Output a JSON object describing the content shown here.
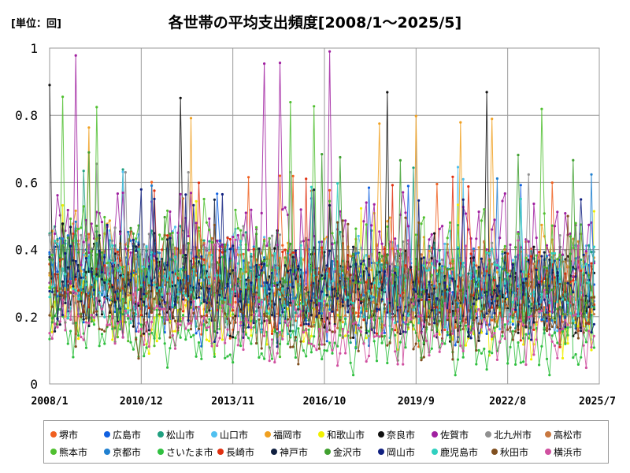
{
  "unit_label": "[単位：回]",
  "chart_data": {
    "type": "line",
    "title": "各世帯の平均支出頻度[2008/1～2025/5]",
    "xlabel": "",
    "ylabel": "",
    "ylim": [
      0,
      1
    ],
    "yticks": [
      "0",
      "0.2",
      "0.4",
      "0.6",
      "0.8",
      "1"
    ],
    "xticks": [
      "2008/1",
      "2010/12",
      "2013/11",
      "2016/10",
      "2019/9",
      "2022/8",
      "2025/7"
    ],
    "x_start": "2008/1",
    "x_end": "2025/7",
    "grid": true,
    "legend_position": "bottom",
    "series": [
      {
        "name": "堺市",
        "color": "#f06020",
        "base": 0.28,
        "amp": 0.09,
        "noise": 0.09,
        "peak": 0.62,
        "seed": 11
      },
      {
        "name": "広島市",
        "color": "#1060e0",
        "base": 0.26,
        "amp": 0.08,
        "noise": 0.09,
        "peak": 0.6,
        "seed": 23
      },
      {
        "name": "松山市",
        "color": "#20a080",
        "base": 0.3,
        "amp": 0.09,
        "noise": 0.1,
        "peak": 0.66,
        "seed": 37
      },
      {
        "name": "山口市",
        "color": "#50c0f0",
        "base": 0.3,
        "amp": 0.08,
        "noise": 0.1,
        "peak": 0.65,
        "seed": 41
      },
      {
        "name": "福岡市",
        "color": "#f0a020",
        "base": 0.32,
        "amp": 0.1,
        "noise": 0.1,
        "peak": 0.8,
        "seed": 53
      },
      {
        "name": "和歌山市",
        "color": "#f0f000",
        "base": 0.2,
        "amp": 0.07,
        "noise": 0.08,
        "peak": 0.55,
        "seed": 67
      },
      {
        "name": "奈良市",
        "color": "#101010",
        "base": 0.27,
        "amp": 0.09,
        "noise": 0.1,
        "peak": 0.89,
        "seed": 71
      },
      {
        "name": "佐賀市",
        "color": "#a020a0",
        "base": 0.38,
        "amp": 0.1,
        "noise": 0.13,
        "peak": 1.0,
        "seed": 83
      },
      {
        "name": "北九州市",
        "color": "#909090",
        "base": 0.3,
        "amp": 0.08,
        "noise": 0.09,
        "peak": 0.66,
        "seed": 97
      },
      {
        "name": "高松市",
        "color": "#c87840",
        "base": 0.29,
        "amp": 0.08,
        "noise": 0.09,
        "peak": 0.6,
        "seed": 101
      },
      {
        "name": "熊本市",
        "color": "#50c030",
        "base": 0.3,
        "amp": 0.12,
        "noise": 0.14,
        "peak": 0.86,
        "seed": 113
      },
      {
        "name": "京都市",
        "color": "#2080d0",
        "base": 0.28,
        "amp": 0.08,
        "noise": 0.1,
        "peak": 0.64,
        "seed": 127
      },
      {
        "name": "さいたま市",
        "color": "#30c040",
        "base": 0.12,
        "amp": 0.05,
        "noise": 0.06,
        "peak": 0.4,
        "seed": 131
      },
      {
        "name": "長崎市",
        "color": "#e03010",
        "base": 0.28,
        "amp": 0.08,
        "noise": 0.1,
        "peak": 0.62,
        "seed": 139
      },
      {
        "name": "神戸市",
        "color": "#102040",
        "base": 0.26,
        "amp": 0.08,
        "noise": 0.09,
        "peak": 0.58,
        "seed": 151
      },
      {
        "name": "金沢市",
        "color": "#40a030",
        "base": 0.28,
        "amp": 0.09,
        "noise": 0.1,
        "peak": 0.7,
        "seed": 163
      },
      {
        "name": "岡山市",
        "color": "#102080",
        "base": 0.26,
        "amp": 0.08,
        "noise": 0.09,
        "peak": 0.58,
        "seed": 173
      },
      {
        "name": "鹿児島市",
        "color": "#30d0c0",
        "base": 0.27,
        "amp": 0.08,
        "noise": 0.09,
        "peak": 0.6,
        "seed": 181
      },
      {
        "name": "秋田市",
        "color": "#805020",
        "base": 0.2,
        "amp": 0.08,
        "noise": 0.08,
        "peak": 0.5,
        "seed": 191
      },
      {
        "name": "横浜市",
        "color": "#d050a0",
        "base": 0.16,
        "amp": 0.06,
        "noise": 0.07,
        "peak": 0.45,
        "seed": 199
      }
    ]
  }
}
